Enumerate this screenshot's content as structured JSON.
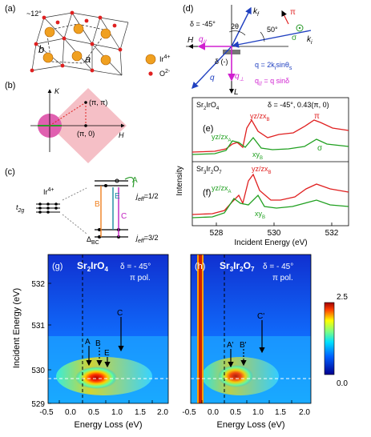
{
  "panel_labels": {
    "a": "(a)",
    "b": "(b)",
    "c": "(c)",
    "d": "(d)",
    "e": "(e)",
    "f": "(f)",
    "g": "(g)",
    "h": "(h)"
  },
  "panel_a": {
    "angle_label": "~12°",
    "b_label": "b",
    "a_label": "a",
    "ir_legend": "Ir",
    "ir_sup": "4+",
    "o_legend": "O",
    "o_sup": "2-",
    "colors": {
      "ir": "#f0a020",
      "o": "#e02020"
    }
  },
  "panel_b": {
    "axis_k": "K",
    "axis_h": "H",
    "point_pipi": "(π, π)",
    "point_pi0": "(π, 0)",
    "colors": {
      "square": "#f4b8c0",
      "circle": "#e060b0"
    }
  },
  "panel_c": {
    "ion": "Ir",
    "ion_sup": "4+",
    "t2g": "t",
    "t2g_sub": "2g",
    "jeff_half": "j",
    "jeff_half_sub": "eff",
    "jeff_half_val": "=1/2",
    "jeff_3half": "j",
    "jeff_3half_sub": "eff",
    "jeff_3half_val": "=3/2",
    "delta_bc": "Δ",
    "delta_bc_sub": "BC",
    "arrow_labels": [
      "A",
      "B",
      "C",
      "E"
    ],
    "colors": {
      "A": "#2a9a2a",
      "B": "#f08020",
      "C": "#c020c0",
      "E": "#1a8aa0"
    }
  },
  "panel_d": {
    "delta": "δ = -45°",
    "kf": "k",
    "kf_sub": "f",
    "ki": "k",
    "ki_sub": "i",
    "pi": "π",
    "sigma": "σ",
    "two_theta": "2θ",
    "angle50": "50°",
    "H": "H",
    "L": "L",
    "qpar": "q",
    "qpar_sub": "//",
    "qperp": "q",
    "qperp_sub": "⊥",
    "q": "q",
    "delta_minus": "δ (-)",
    "eq1": "q = 2k",
    "eq1_sub": "i",
    "eq1_tail": "sinθ",
    "eq1_tail_sub": "s",
    "eq2": "q",
    "eq2_sub": "//",
    "eq2_tail": " = q sinδ"
  },
  "panel_ef": {
    "ylabel": "Intensity",
    "xlabel": "Incident Energy (eV)",
    "x_ticks": [
      "528",
      "530",
      "532"
    ],
    "e_title": "Sr",
    "e_title_sub": "2",
    "e_title2": "IrO",
    "e_title2_sub": "4",
    "e_cond": "δ = -45°, 0.43(π, 0)",
    "f_title": "Sr",
    "f_title_sub": "3",
    "f_title2": "Ir",
    "f_title2_sub": "2",
    "f_title3": "O",
    "f_title3_sub": "7",
    "labels": {
      "yzzx_A": "yz/zx",
      "yzzx_A_sub": "A",
      "yzzx_B": "yz/zx",
      "yzzx_B_sub": "B",
      "xy": "xy",
      "xy_sub": "B",
      "pi": "π",
      "sigma": "σ"
    },
    "colors": {
      "pi": "#e02020",
      "sigma": "#20a020"
    }
  },
  "panel_gh": {
    "ylabel": "Incident Energy (eV)",
    "xlabel": "Energy Loss (eV)",
    "y_ticks": [
      "529",
      "530",
      "531",
      "532"
    ],
    "x_ticks": [
      "-0.5",
      "0.0",
      "0.5",
      "1.0",
      "1.5",
      "2.0"
    ],
    "g_title": "Sr",
    "g_title_sub": "2",
    "g_title2": "IrO",
    "g_title2_sub": "4",
    "h_title": "Sr",
    "h_title_sub": "3",
    "h_title2": "Ir",
    "h_title2_sub": "2",
    "h_title3": "O",
    "h_title3_sub": "7",
    "delta": "δ = - 45°",
    "pol": "π pol.",
    "g_arrows": [
      "A",
      "B",
      "E",
      "C"
    ],
    "h_arrows": [
      "A'",
      "B'",
      "C'"
    ],
    "colorbar": {
      "max": "2.5",
      "min": "0.0"
    }
  }
}
